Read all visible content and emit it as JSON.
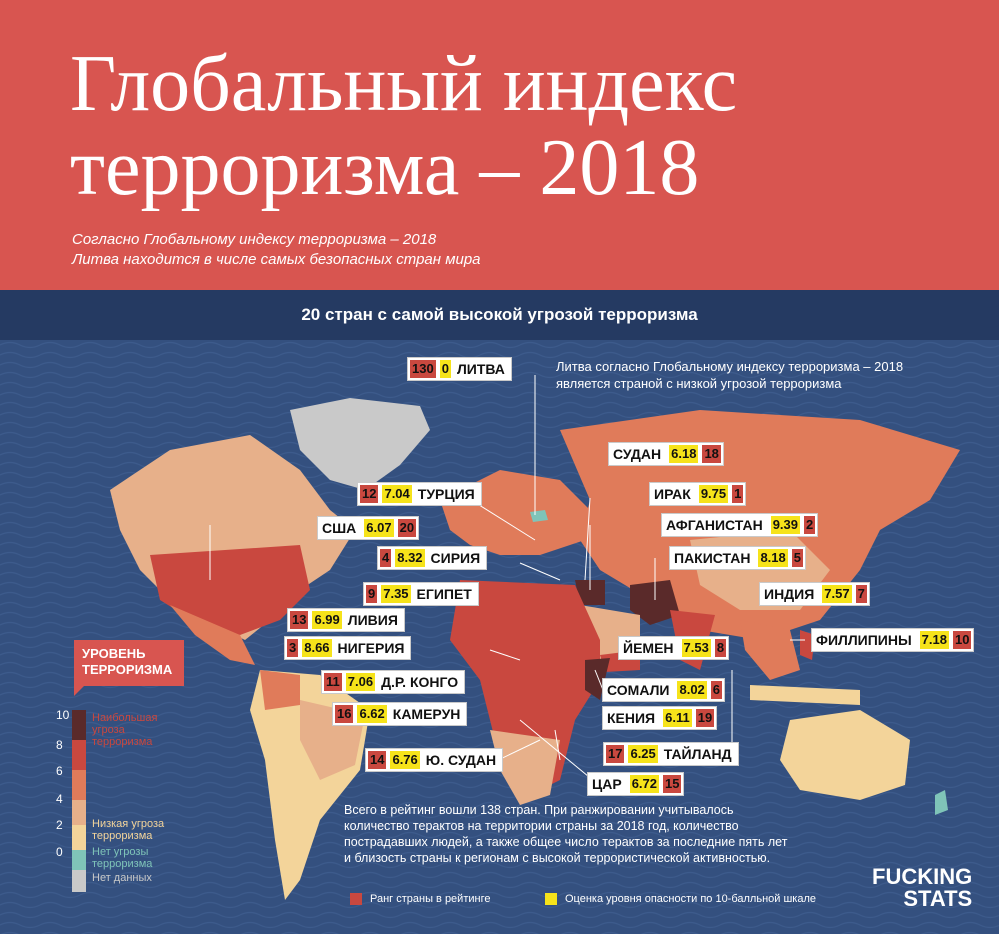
{
  "header": {
    "title_line1": "Глобальный индекс",
    "title_line2": "терроризма – 2018",
    "subtitle_line1": "Согласно Глобальному индексу терроризма – 2018",
    "subtitle_line2": "Литва находится в числе самых безопасных стран мира"
  },
  "band": {
    "title": "20 стран с самой высокой угрозой терроризма"
  },
  "lithuania_note": {
    "line1": "Литва согласно Глобальному индексу терроризма – 2018",
    "line2": "является страной с низкой угрозой терроризма"
  },
  "countries": [
    {
      "name": "ЛИТВА",
      "rank": "130",
      "score": "0"
    },
    {
      "name": "СУДАН",
      "rank": "18",
      "score": "6.18"
    },
    {
      "name": "ТУРЦИЯ",
      "rank": "12",
      "score": "7.04"
    },
    {
      "name": "ИРАК",
      "rank": "1",
      "score": "9.75"
    },
    {
      "name": "США",
      "rank": "20",
      "score": "6.07"
    },
    {
      "name": "АФГАНИСТАН",
      "rank": "2",
      "score": "9.39"
    },
    {
      "name": "СИРИЯ",
      "rank": "4",
      "score": "8.32"
    },
    {
      "name": "ПАКИСТАН",
      "rank": "5",
      "score": "8.18"
    },
    {
      "name": "ЕГИПЕТ",
      "rank": "9",
      "score": "7.35"
    },
    {
      "name": "ИНДИЯ",
      "rank": "7",
      "score": "7.57"
    },
    {
      "name": "ЛИВИЯ",
      "rank": "13",
      "score": "6.99"
    },
    {
      "name": "ФИЛЛИПИНЫ",
      "rank": "10",
      "score": "7.18"
    },
    {
      "name": "НИГЕРИЯ",
      "rank": "3",
      "score": "8.66"
    },
    {
      "name": "ЙЕМЕН",
      "rank": "8",
      "score": "7.53"
    },
    {
      "name": "Д.Р. КОНГО",
      "rank": "11",
      "score": "7.06"
    },
    {
      "name": "СОМАЛИ",
      "rank": "6",
      "score": "8.02"
    },
    {
      "name": "КАМЕРУН",
      "rank": "16",
      "score": "6.62"
    },
    {
      "name": "КЕНИЯ",
      "rank": "19",
      "score": "6.11"
    },
    {
      "name": "ТАЙЛАНД",
      "rank": "17",
      "score": "6.25"
    },
    {
      "name": "Ю. СУДАН",
      "rank": "14",
      "score": "6.76"
    },
    {
      "name": "ЦАР",
      "rank": "15",
      "score": "6.72"
    }
  ],
  "legend": {
    "title_line1": "УРОВЕНЬ",
    "title_line2": "ТЕРРОРИЗМА",
    "ticks": [
      "10",
      "8",
      "6",
      "4",
      "2",
      "0"
    ],
    "high": "Наибольшая угроза терроризма",
    "low": "Низкая угроза терроризма",
    "none": "Нет угрозы терроризма",
    "nodata": "Нет данных",
    "colors": {
      "high_dark": "#5a2a2a",
      "high": "#c9483f",
      "mid": "#e07b5a",
      "low_mid": "#e7b08a",
      "low": "#f3d49a",
      "none": "#7fc4b8",
      "nodata": "#c9c9c9"
    }
  },
  "footnote": {
    "line1": "Всего в рейтинг вошли 138 стран. При ранжировании учитывалось",
    "line2": "количество терактов на территории страны за 2018 год, количество",
    "line3": "пострадавших людей, а также общее число терактов за последние пять лет",
    "line4": "и близость страны к регионам с высокой террористической активностью."
  },
  "keys": {
    "rank": "Ранг страны в рейтинге",
    "score": "Оценка уровня опасности по 10-балльной шкале",
    "rank_color": "#c9483f",
    "score_color": "#f6e31a"
  },
  "brand": {
    "line1": "FUCKING",
    "line2": "STATS"
  }
}
